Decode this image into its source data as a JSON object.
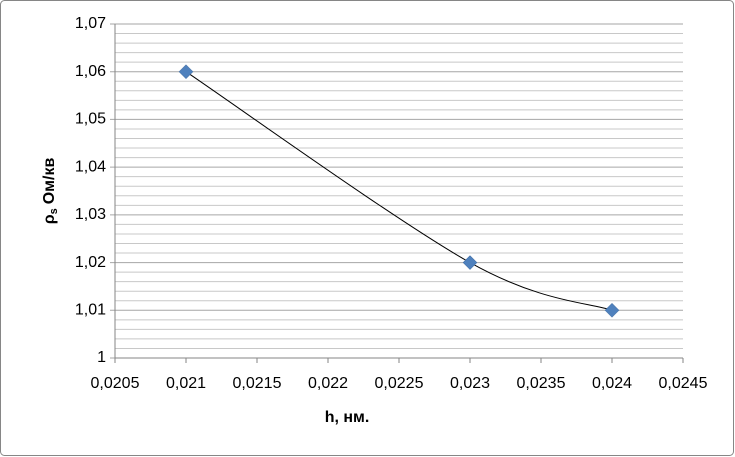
{
  "chart_data": {
    "type": "scatter",
    "x_label": "h, нм.",
    "y_label": [
      "ρ",
      "s",
      "Ом/кв"
    ],
    "series": [
      {
        "color": "#4f81bd",
        "line_color": "#000000",
        "x": [
          0.021,
          0.023,
          0.024
        ],
        "values": [
          1.06,
          1.02,
          1.01
        ]
      }
    ],
    "xlim": [
      0.0205,
      0.0245
    ],
    "xticks": [
      {
        "value": 0.0205,
        "label": "0,0205"
      },
      {
        "value": 0.021,
        "label": "0,021"
      },
      {
        "value": 0.0215,
        "label": "0,0215"
      },
      {
        "value": 0.022,
        "label": "0,022"
      },
      {
        "value": 0.0225,
        "label": "0,0225"
      },
      {
        "value": 0.023,
        "label": "0,023"
      },
      {
        "value": 0.0235,
        "label": "0,0235"
      },
      {
        "value": 0.024,
        "label": "0,024"
      },
      {
        "value": 0.0245,
        "label": "0,0245"
      }
    ],
    "ylim": [
      1,
      1.07
    ],
    "yticks": [
      1,
      {
        "value": 1.01,
        "label": "1,01"
      },
      {
        "value": 1.02,
        "label": "1,02"
      },
      {
        "value": 1.03,
        "label": "1,03"
      },
      {
        "value": 1.04,
        "label": "1,04"
      },
      {
        "value": 1.05,
        "label": "1,05"
      },
      {
        "value": 1.06,
        "label": "1,06"
      },
      {
        "value": 1.07,
        "label": "1,07"
      }
    ],
    "minor_yticks": [
      1.002,
      1.004,
      1.006,
      1.008,
      1.012,
      1.014,
      1.016,
      1.018,
      1.022,
      1.024,
      1.026,
      1.028,
      1.032,
      1.034,
      1.036,
      1.038,
      1.042,
      1.044,
      1.046,
      1.048,
      1.052,
      1.054,
      1.056,
      1.058,
      1.062,
      1.064,
      1.066,
      1.068
    ],
    "grid": true,
    "smooth": true
  }
}
